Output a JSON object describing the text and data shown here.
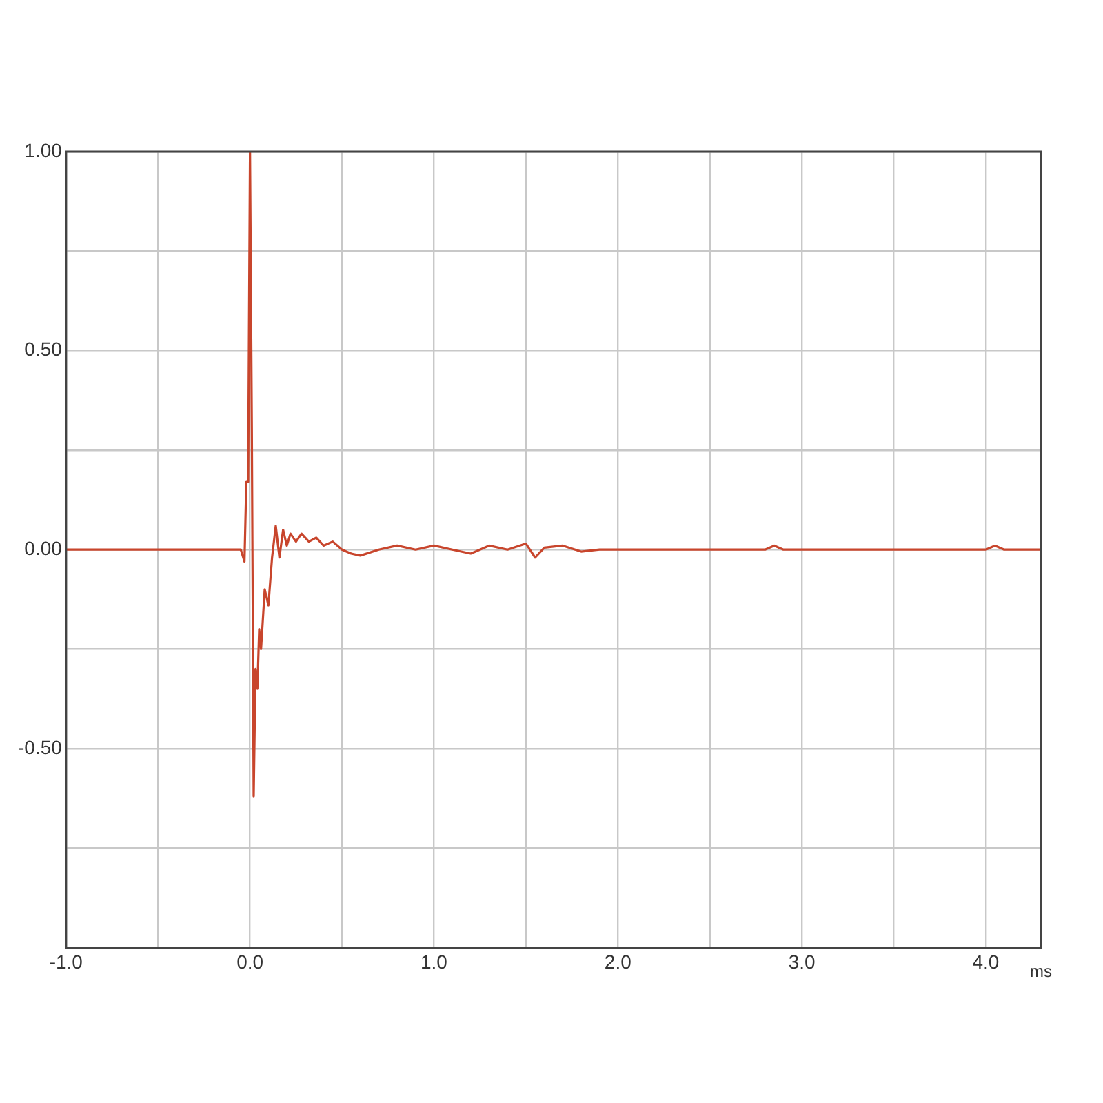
{
  "chart_data": {
    "type": "line",
    "xlabel": "ms",
    "xlim": [
      -1.0,
      4.3
    ],
    "xticks": [
      {
        "value": -1.0,
        "label": "-1.0"
      },
      {
        "value": -0.5,
        "label": null
      },
      {
        "value": 0,
        "label": "0.0"
      },
      {
        "value": 0.5,
        "label": null
      },
      {
        "value": 1,
        "label": "1.0"
      },
      {
        "value": 1.5,
        "label": null
      },
      {
        "value": 2,
        "label": "2.0"
      },
      {
        "value": 2.5,
        "label": null
      },
      {
        "value": 3,
        "label": "3.0"
      },
      {
        "value": 3.5,
        "label": null
      },
      {
        "value": 4,
        "label": "4.0"
      }
    ],
    "ylim": [
      -1.0,
      1.0
    ],
    "yticks": [
      {
        "value": -1.0,
        "label": null
      },
      {
        "value": -0.75,
        "label": null
      },
      {
        "value": -0.5,
        "label": "-0.50"
      },
      {
        "value": -0.25,
        "label": null
      },
      {
        "value": 0,
        "label": "0.00"
      },
      {
        "value": 0.25,
        "label": null
      },
      {
        "value": 0.5,
        "label": "0.50"
      },
      {
        "value": 0.75,
        "label": null
      },
      {
        "value": 1.0,
        "label": "1.00"
      }
    ],
    "grid": true,
    "marker": "none",
    "line_style": "solid",
    "series": [
      {
        "color": "#c8452c",
        "x": [
          -1.0,
          -0.05,
          -0.03,
          -0.02,
          -0.01,
          0.0,
          0.01,
          0.02,
          0.03,
          0.04,
          0.05,
          0.06,
          0.08,
          0.1,
          0.12,
          0.14,
          0.16,
          0.18,
          0.2,
          0.22,
          0.25,
          0.28,
          0.32,
          0.36,
          0.4,
          0.45,
          0.5,
          0.55,
          0.6,
          0.7,
          0.8,
          0.9,
          1.0,
          1.1,
          1.2,
          1.3,
          1.4,
          1.5,
          1.55,
          1.6,
          1.7,
          1.8,
          1.9,
          2.8,
          2.85,
          2.9,
          4.0,
          4.05,
          4.1,
          4.3
        ],
        "values": [
          0,
          0,
          -0.03,
          0.17,
          0.17,
          1.0,
          0.3,
          -0.62,
          -0.3,
          -0.35,
          -0.2,
          -0.25,
          -0.1,
          -0.14,
          -0.02,
          0.06,
          -0.02,
          0.05,
          0.01,
          0.04,
          0.02,
          0.04,
          0.02,
          0.03,
          0.01,
          0.02,
          0.0,
          -0.01,
          -0.015,
          0.0,
          0.01,
          0.0,
          0.01,
          0.0,
          -0.01,
          0.01,
          0.0,
          0.015,
          -0.02,
          0.005,
          0.01,
          -0.005,
          0.0,
          0.0,
          0.01,
          0.0,
          0.0,
          0.01,
          0.0,
          0.0
        ]
      }
    ]
  }
}
